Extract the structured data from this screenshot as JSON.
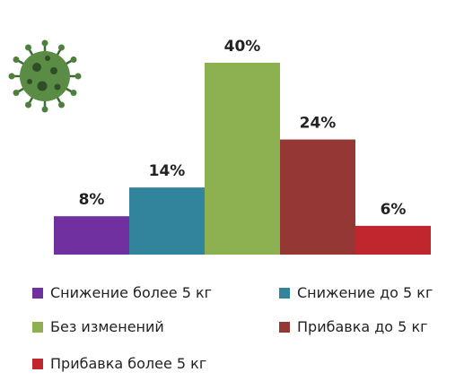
{
  "chart_data": {
    "type": "bar",
    "title": "",
    "xlabel": "",
    "ylabel": "",
    "ylim": [
      0,
      40
    ],
    "categories": [
      "Снижение более 5 кг",
      "Снижение до 5 кг",
      "Без изменений",
      "Прибавка до 5 кг",
      "Прибавка более 5 кг"
    ],
    "values": [
      8,
      14,
      40,
      24,
      6
    ],
    "data_labels": [
      "8%",
      "14%",
      "40%",
      "24%",
      "6%"
    ],
    "colors": [
      "#7030a0",
      "#31849b",
      "#8db050",
      "#953735",
      "#c0272d"
    ],
    "grid": false,
    "legend_position": "bottom"
  },
  "decoration": {
    "icon": "virus-icon",
    "color": "#4f7f3f"
  }
}
